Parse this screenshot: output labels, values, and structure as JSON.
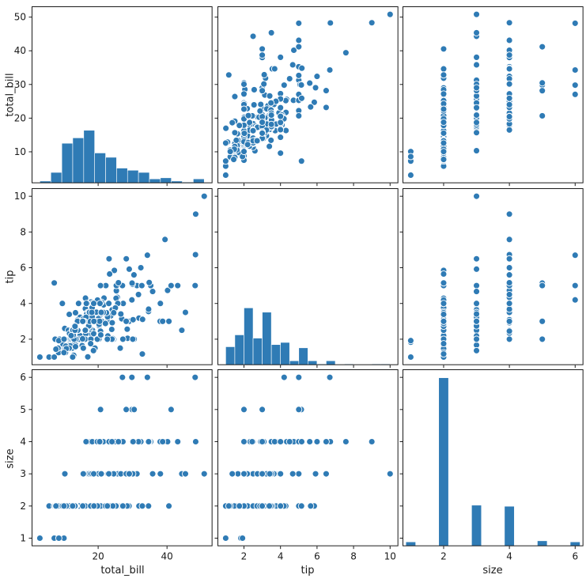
{
  "chart_data": {
    "type": "scatter-matrix",
    "variables": [
      "total_bill",
      "tip",
      "size"
    ],
    "diagonal": "hist",
    "grid": false,
    "legend": null,
    "axis_ranges": {
      "total_bill": [
        0.68,
        53.2
      ],
      "tip": [
        0.55,
        10.45
      ],
      "size": [
        0.75,
        6.25
      ]
    },
    "ticks": {
      "total_bill": {
        "y": [
          10,
          20,
          30,
          40,
          50
        ],
        "x": [
          20,
          40
        ]
      },
      "tip": {
        "y": [
          2,
          4,
          6,
          8,
          10
        ],
        "x": [
          2,
          4,
          6,
          8,
          10
        ]
      },
      "size": {
        "y": [
          1,
          2,
          3,
          4,
          5,
          6
        ],
        "x": [
          2,
          4,
          6
        ]
      }
    },
    "hist": {
      "total_bill": {
        "bins": 15
      },
      "tip": {
        "bins": 18
      },
      "size": {
        "discrete": true,
        "bar_width": 0.3
      }
    },
    "style": {
      "marker_color": "#2f7bb5",
      "marker_edge": "#ffffff",
      "spine_color": "#1a1a1a",
      "text_color": "#1a1a1a",
      "marker_radius": 4
    },
    "points": {
      "total_bill": [
        16.99,
        10.34,
        21.01,
        23.68,
        24.59,
        25.29,
        8.77,
        26.88,
        15.04,
        14.78,
        10.27,
        35.26,
        15.42,
        18.43,
        14.83,
        21.58,
        10.33,
        16.29,
        16.97,
        20.65,
        17.92,
        20.29,
        15.77,
        39.42,
        19.82,
        17.81,
        13.37,
        12.69,
        21.7,
        19.65,
        9.55,
        18.35,
        15.06,
        20.69,
        17.78,
        24.06,
        16.31,
        16.93,
        18.69,
        31.27,
        16.04,
        17.46,
        13.94,
        9.68,
        30.4,
        18.29,
        22.23,
        32.4,
        28.55,
        18.04,
        12.54,
        10.29,
        34.81,
        9.94,
        25.56,
        19.49,
        38.01,
        26.41,
        11.24,
        48.27,
        20.29,
        13.81,
        11.02,
        18.29,
        17.59,
        20.08,
        16.45,
        3.07,
        20.23,
        15.01,
        12.02,
        17.07,
        26.86,
        25.28,
        14.73,
        10.51,
        17.92,
        27.2,
        22.76,
        17.29,
        19.44,
        16.66,
        10.07,
        32.68,
        15.98,
        34.83,
        13.03,
        18.28,
        24.71,
        21.16,
        28.97,
        22.49,
        5.75,
        16.32,
        22.75,
        40.17,
        27.28,
        12.03,
        21.01,
        12.46,
        11.35,
        15.38,
        44.3,
        22.42,
        20.92,
        15.36,
        20.49,
        25.21,
        18.24,
        14.31,
        14,
        7.25,
        38.07,
        23.95,
        25.71,
        17.31,
        29.93,
        10.65,
        12.43,
        24.08,
        11.69,
        13.42,
        14.26,
        15.95,
        12.48,
        29.8,
        8.52,
        14.52,
        11.38,
        22.82,
        19.08,
        20.27,
        11.17,
        12.26,
        18.26,
        8.51,
        10.33,
        14.15,
        16,
        13.16,
        17.47,
        34.3,
        41.19,
        27.05,
        16.43,
        8.35,
        18.64,
        11.87,
        9.78,
        7.51,
        14.07,
        13.13,
        17.26,
        24.55,
        19.77,
        29.85,
        48.17,
        25,
        13.39,
        16.49,
        21.5,
        12.66,
        16.21,
        13.81,
        17.51,
        24.52,
        20.76,
        31.71,
        10.59,
        10.63,
        50.81,
        15.81,
        7.25,
        31.85,
        16.82,
        32.9,
        17.89,
        14.48,
        9.6,
        34.63,
        34.65,
        23.33,
        45.35,
        23.17,
        40.55,
        20.69,
        20.9,
        30.46,
        18.15,
        23.1,
        15.69,
        19.81,
        28.44,
        15.48,
        16.58,
        7.56,
        10.34,
        43.11,
        13,
        13.51,
        18.71,
        12.74,
        13,
        16.4,
        20.53,
        16.47,
        26.59,
        38.73,
        24.27,
        12.76,
        30.06,
        25.89,
        48.33,
        13.27,
        28.17,
        12.9,
        28.15,
        11.59,
        7.74,
        30.14,
        12.16,
        13.42,
        8.58,
        15.98,
        13.42,
        16.27,
        10.09,
        20.45,
        13.28,
        22.12,
        24.01,
        15.69,
        11.61,
        10.77,
        15.53,
        10.07,
        12.6,
        32.83,
        35.83,
        29.03,
        27.18,
        22.67,
        17.82,
        18.78
      ],
      "tip": [
        1.01,
        1.66,
        3.5,
        3.31,
        3.61,
        4.71,
        2,
        3.12,
        1.96,
        3.23,
        1.71,
        5,
        1.57,
        3,
        3.02,
        3.92,
        1.67,
        3.71,
        3.5,
        3.35,
        4.08,
        2.75,
        2.23,
        7.58,
        3.18,
        2.34,
        2,
        2,
        4.3,
        3,
        1.45,
        2.5,
        3,
        2.45,
        3.27,
        3.64,
        2,
        3.07,
        2.31,
        5,
        2.24,
        2.54,
        3.06,
        1.32,
        5.6,
        3,
        5,
        6,
        2.05,
        3,
        2.5,
        2.6,
        5.2,
        1.56,
        4.34,
        3.51,
        3,
        1.5,
        1.76,
        6.73,
        3.21,
        2,
        1.98,
        3.76,
        2.64,
        3.15,
        2.47,
        1,
        2.01,
        2.09,
        1.97,
        3,
        3.14,
        5,
        2.2,
        1.25,
        3.08,
        4,
        3,
        2.71,
        3,
        3.4,
        1.83,
        5,
        2.03,
        5.17,
        2,
        4,
        5.85,
        3,
        3,
        3.5,
        1,
        4.3,
        3.25,
        4.73,
        4,
        1.5,
        3,
        1.5,
        2.5,
        3,
        2.5,
        3.48,
        4.08,
        1.64,
        4.06,
        4.29,
        3.76,
        4,
        3,
        1,
        4,
        2.55,
        4,
        3.5,
        5.07,
        1.5,
        1.8,
        2.92,
        2.31,
        1.68,
        2.5,
        2,
        2.52,
        4.2,
        1.48,
        2,
        2,
        2.18,
        1.5,
        2.83,
        1.5,
        2,
        3.25,
        1.25,
        2,
        2,
        2,
        2.75,
        3.5,
        6.7,
        5,
        5,
        2.3,
        1.5,
        1.36,
        1.63,
        1.73,
        2,
        2.5,
        2,
        2.74,
        2,
        2,
        5.14,
        5,
        3.75,
        2.61,
        2,
        3.5,
        2.5,
        2,
        2,
        3,
        3.48,
        2.24,
        4.5,
        1.61,
        2,
        10,
        3.16,
        5.15,
        3.18,
        4,
        3.11,
        2,
        2,
        4,
        3.55,
        3.68,
        5.65,
        3.5,
        6.5,
        3,
        5,
        3.5,
        2,
        3.5,
        4,
        1.5,
        4.19,
        2.56,
        2.02,
        4,
        1.44,
        2,
        5,
        2,
        2,
        4,
        2.01,
        2,
        2.5,
        4,
        3.23,
        3.41,
        3,
        2.03,
        2.23,
        2,
        5.16,
        9,
        2.5,
        6.5,
        1.1,
        3,
        1.5,
        1.44,
        3.09,
        2.2,
        3.48,
        1.92,
        3,
        1.58,
        2.5,
        2,
        3,
        2.72,
        2.88,
        2,
        3,
        3.39,
        1.47,
        3,
        1.25,
        1,
        1.17,
        4.67,
        5.92,
        2,
        2,
        1.75,
        3
      ],
      "size": [
        2,
        3,
        3,
        2,
        4,
        4,
        2,
        4,
        2,
        2,
        2,
        4,
        2,
        4,
        2,
        2,
        3,
        3,
        3,
        3,
        2,
        2,
        2,
        4,
        2,
        4,
        2,
        2,
        2,
        2,
        2,
        4,
        2,
        4,
        2,
        3,
        3,
        3,
        3,
        3,
        3,
        2,
        2,
        2,
        4,
        2,
        2,
        4,
        3,
        2,
        2,
        2,
        4,
        2,
        4,
        2,
        4,
        2,
        2,
        4,
        2,
        2,
        2,
        4,
        3,
        3,
        2,
        1,
        2,
        2,
        2,
        3,
        2,
        2,
        2,
        2,
        2,
        4,
        2,
        2,
        2,
        2,
        1,
        2,
        2,
        4,
        2,
        2,
        2,
        2,
        2,
        2,
        2,
        2,
        2,
        4,
        2,
        2,
        2,
        2,
        2,
        2,
        3,
        2,
        2,
        2,
        2,
        2,
        2,
        2,
        2,
        1,
        3,
        2,
        3,
        2,
        4,
        2,
        2,
        4,
        2,
        2,
        2,
        2,
        2,
        6,
        2,
        2,
        2,
        3,
        2,
        2,
        2,
        2,
        2,
        2,
        2,
        2,
        2,
        2,
        2,
        6,
        5,
        6,
        2,
        2,
        3,
        2,
        2,
        2,
        2,
        2,
        3,
        4,
        4,
        5,
        6,
        4,
        2,
        4,
        4,
        2,
        3,
        2,
        2,
        3,
        2,
        4,
        2,
        2,
        3,
        2,
        2,
        2,
        2,
        2,
        2,
        2,
        2,
        2,
        4,
        2,
        3,
        4,
        2,
        5,
        3,
        5,
        3,
        3,
        2,
        2,
        2,
        2,
        2,
        2,
        2,
        4,
        2,
        2,
        3,
        2,
        2,
        2,
        4,
        3,
        3,
        4,
        2,
        2,
        3,
        4,
        4,
        2,
        3,
        2,
        5,
        2,
        2,
        4,
        2,
        2,
        1,
        3,
        2,
        2,
        2,
        4,
        2,
        2,
        4,
        3,
        2,
        2,
        2,
        2,
        2,
        2,
        3,
        3,
        2,
        2,
        2,
        2
      ]
    }
  }
}
